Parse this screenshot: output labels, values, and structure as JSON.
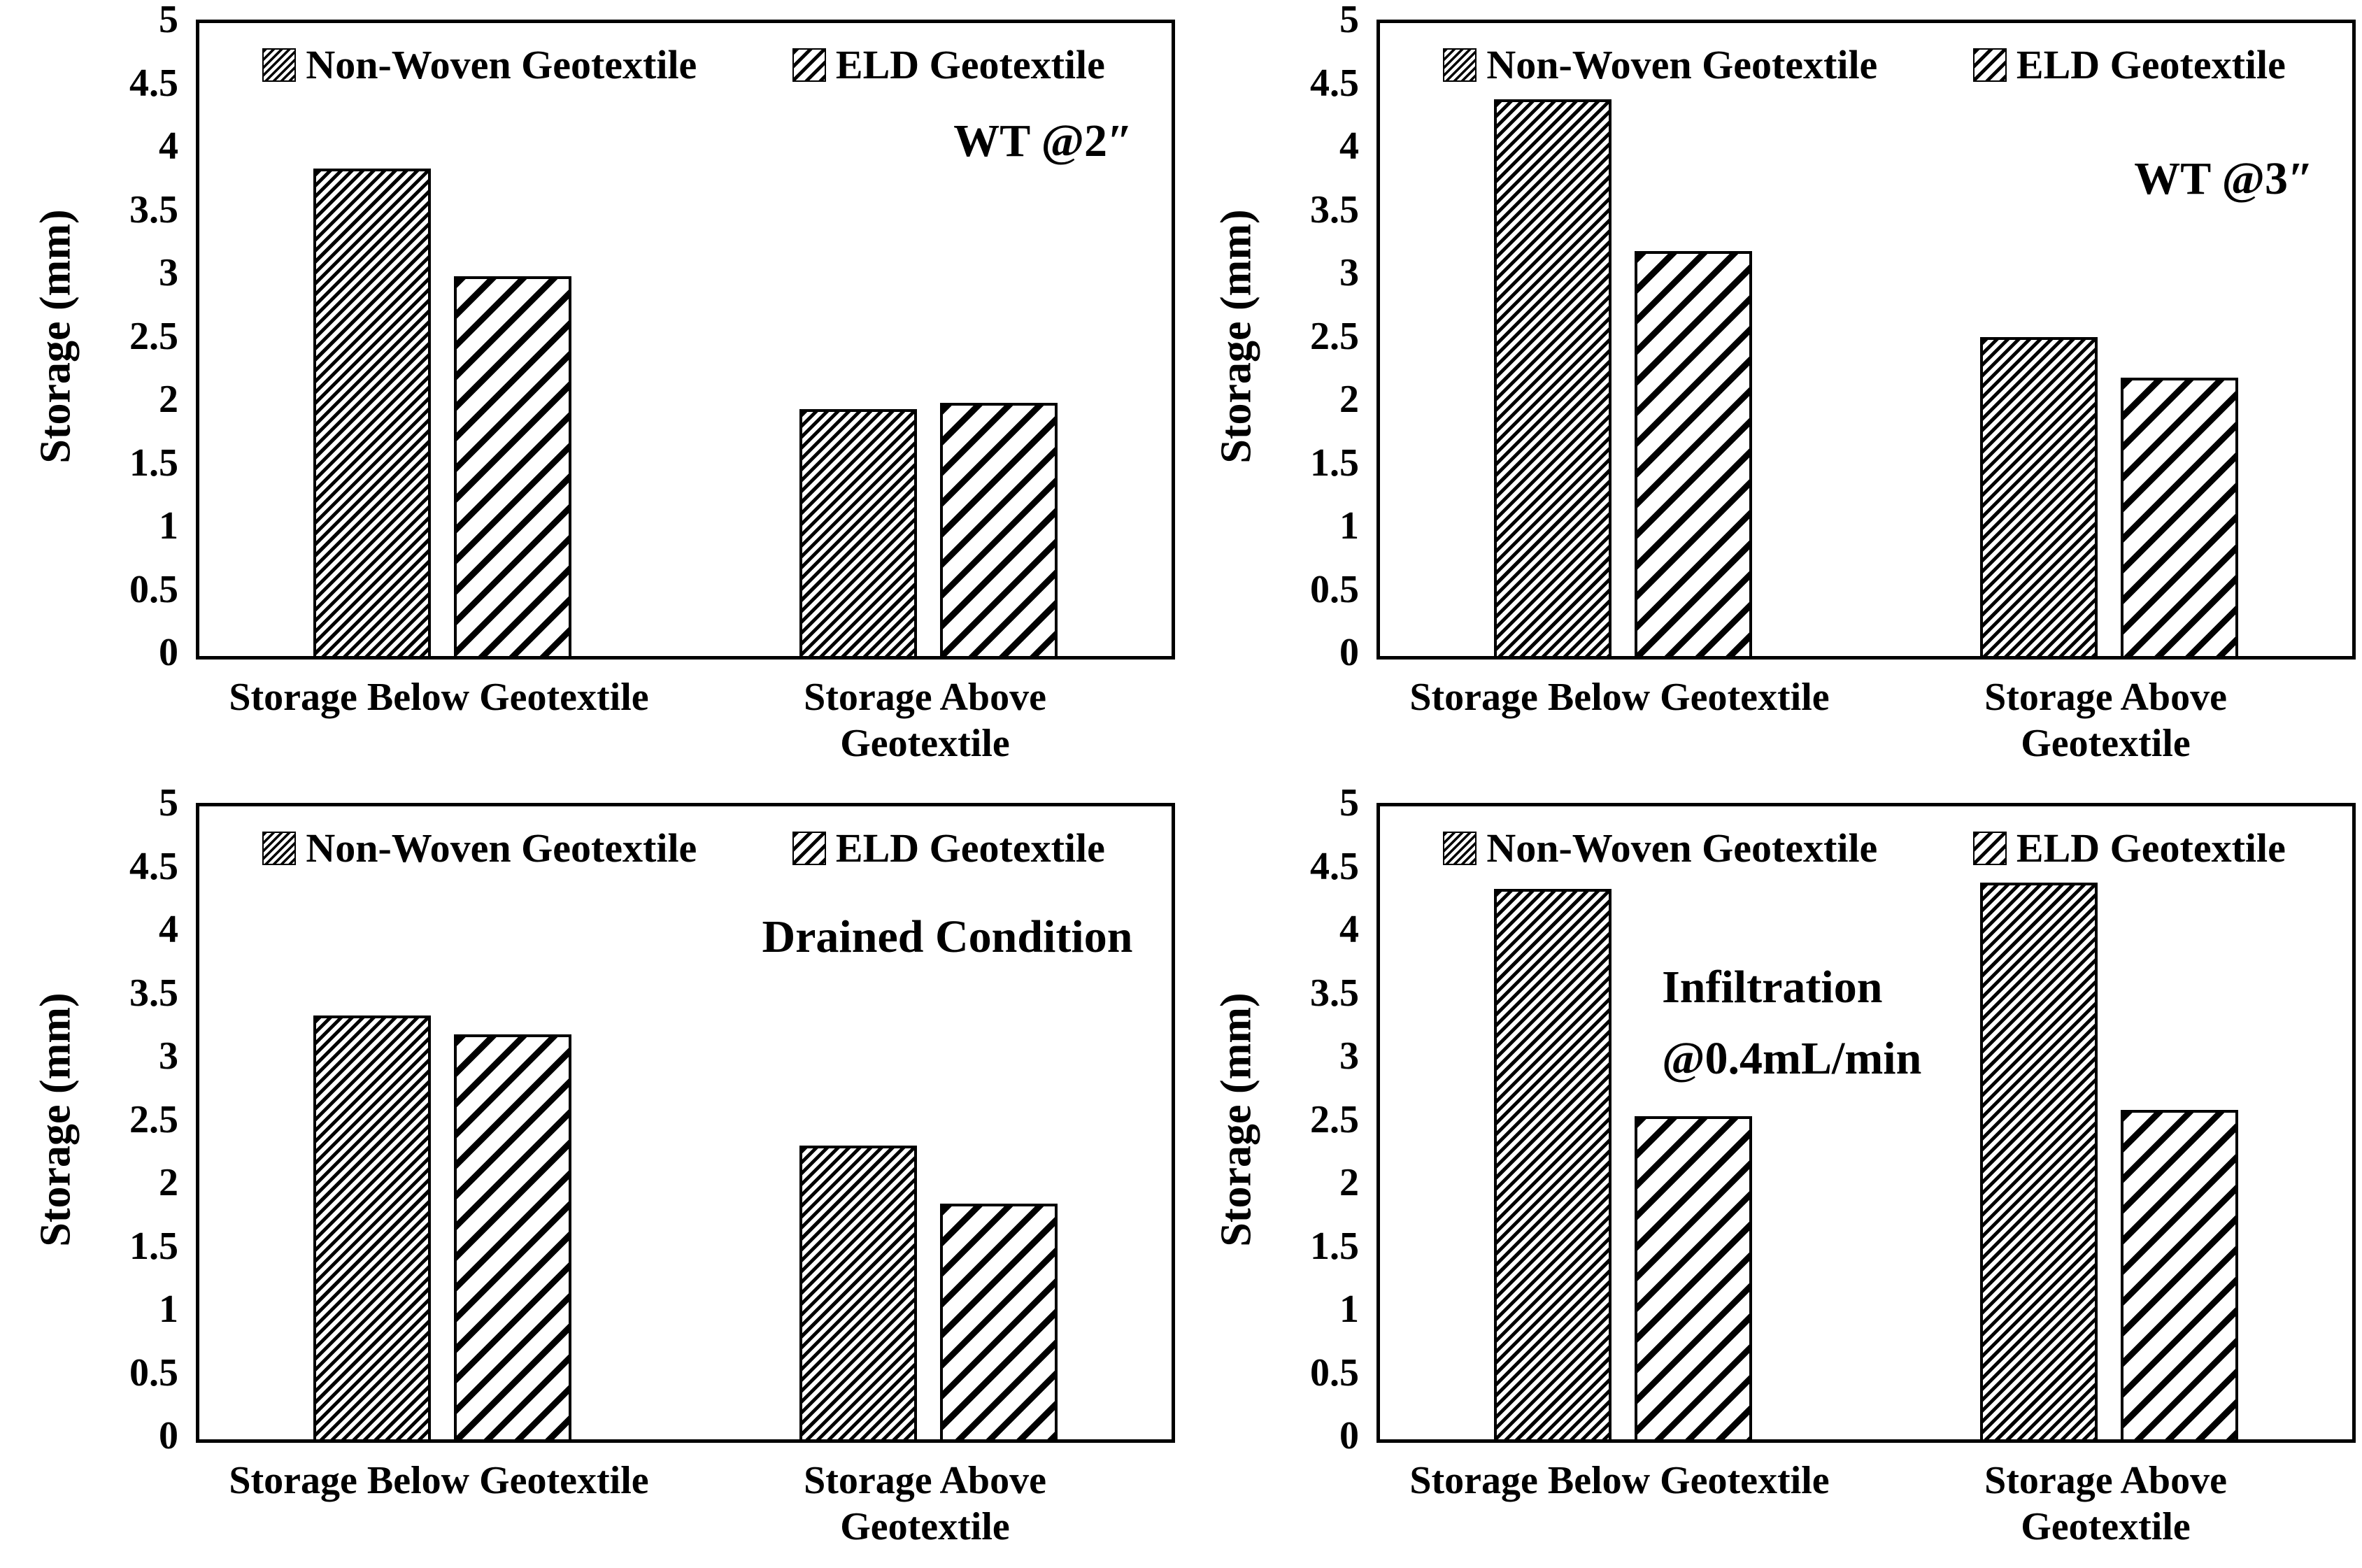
{
  "colors": {
    "foreground": "#000000",
    "background": "#ffffff"
  },
  "chart_data": [
    {
      "type": "bar",
      "panel": "top-left",
      "annotation": [
        "WT @2″"
      ],
      "ylabel": "Storage (mm)",
      "ylim": [
        0,
        5
      ],
      "ytick_step": 0.5,
      "yticks_labels": [
        "5",
        "4.5",
        "4",
        "3.5",
        "3",
        "2.5",
        "2",
        "1.5",
        "1",
        "0.5",
        "0"
      ],
      "grid": false,
      "legend_position": "top-inside",
      "categories": [
        "Storage Below Geotextile",
        "Storage Above\nGeotextile"
      ],
      "series": [
        {
          "name": "Non-Woven Geotextile",
          "hatch": "dense-diagonal",
          "values": [
            3.85,
            1.95
          ]
        },
        {
          "name": "ELD Geotextile",
          "hatch": "light-diagonal",
          "values": [
            3.0,
            2.0
          ]
        }
      ]
    },
    {
      "type": "bar",
      "panel": "top-right",
      "annotation": [
        "WT @3″"
      ],
      "ylabel": "Storage (mm)",
      "ylim": [
        0,
        5
      ],
      "ytick_step": 0.5,
      "yticks_labels": [
        "5",
        "4.5",
        "4",
        "3.5",
        "3",
        "2.5",
        "2",
        "1.5",
        "1",
        "0.5",
        "0"
      ],
      "grid": false,
      "legend_position": "top-inside",
      "categories": [
        "Storage Below Geotextile",
        "Storage Above\nGeotextile"
      ],
      "series": [
        {
          "name": "Non-Woven Geotextile",
          "hatch": "dense-diagonal",
          "values": [
            4.4,
            2.52
          ]
        },
        {
          "name": "ELD Geotextile",
          "hatch": "light-diagonal",
          "values": [
            3.2,
            2.2
          ]
        }
      ]
    },
    {
      "type": "bar",
      "panel": "bottom-left",
      "annotation": [
        "Drained Condition"
      ],
      "ylabel": "Storage (mm)",
      "ylim": [
        0,
        5
      ],
      "ytick_step": 0.5,
      "yticks_labels": [
        "5",
        "4.5",
        "4",
        "3.5",
        "3",
        "2.5",
        "2",
        "1.5",
        "1",
        "0.5",
        "0"
      ],
      "grid": false,
      "legend_position": "top-inside",
      "categories": [
        "Storage Below Geotextile",
        "Storage Above\nGeotextile"
      ],
      "series": [
        {
          "name": "Non-Woven Geotextile",
          "hatch": "dense-diagonal",
          "values": [
            3.35,
            2.32
          ]
        },
        {
          "name": "ELD Geotextile",
          "hatch": "light-diagonal",
          "values": [
            3.2,
            1.86
          ]
        }
      ]
    },
    {
      "type": "bar",
      "panel": "bottom-right",
      "annotation": [
        "Infiltration",
        "@0.4mL/min"
      ],
      "ylabel": "Storage (mm)",
      "ylim": [
        0,
        5
      ],
      "ytick_step": 0.5,
      "yticks_labels": [
        "5",
        "4.5",
        "4",
        "3.5",
        "3",
        "2.5",
        "2",
        "1.5",
        "1",
        "0.5",
        "0"
      ],
      "grid": false,
      "legend_position": "top-inside",
      "categories": [
        "Storage Below Geotextile",
        "Storage Above\nGeotextile"
      ],
      "series": [
        {
          "name": "Non-Woven Geotextile",
          "hatch": "dense-diagonal",
          "values": [
            4.35,
            4.4
          ]
        },
        {
          "name": "ELD Geotextile",
          "hatch": "light-diagonal",
          "values": [
            2.55,
            2.6
          ]
        }
      ]
    }
  ]
}
